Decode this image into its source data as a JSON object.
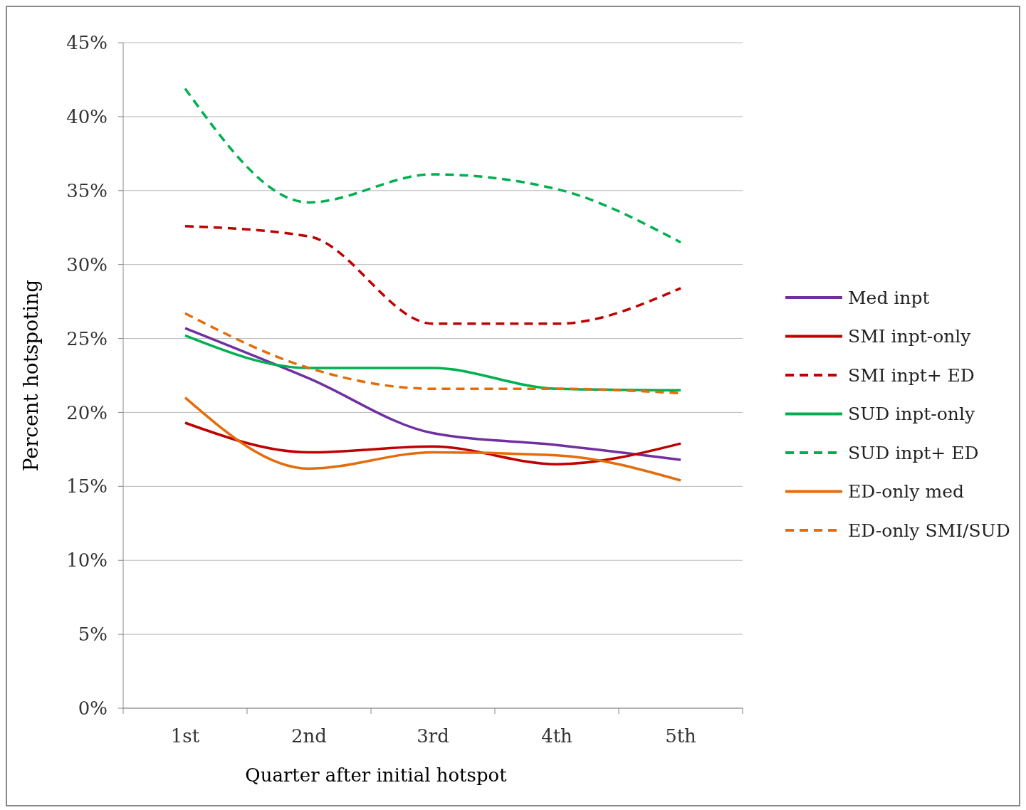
{
  "chart_data": {
    "type": "line",
    "xlabel": "Quarter after initial hotspot",
    "ylabel": "Percent  hotspoting",
    "categories": [
      "1st",
      "2nd",
      "3rd",
      "4th",
      "5th"
    ],
    "ylim": [
      0,
      45
    ],
    "yticks": [
      {
        "value": 0,
        "label": "0%"
      },
      {
        "value": 5,
        "label": "5%"
      },
      {
        "value": 10,
        "label": "10%"
      },
      {
        "value": 15,
        "label": "15%"
      },
      {
        "value": 20,
        "label": "20%"
      },
      {
        "value": 25,
        "label": "25%"
      },
      {
        "value": 30,
        "label": "30%"
      },
      {
        "value": 35,
        "label": "35%"
      },
      {
        "value": 40,
        "label": "40%"
      },
      {
        "value": 45,
        "label": "45%"
      }
    ],
    "grid": "y",
    "legend": "right",
    "marker": "none",
    "series": [
      {
        "name": "Med inpt",
        "color": "#7030a0",
        "line_style": "solid",
        "values": [
          25.7,
          22.3,
          18.6,
          17.8,
          16.8
        ]
      },
      {
        "name": "SMI inpt-only",
        "color": "#c00000",
        "line_style": "solid",
        "values": [
          19.3,
          17.3,
          17.7,
          16.5,
          17.9
        ]
      },
      {
        "name": "SMI inpt+ ED",
        "color": "#c00000",
        "line_style": "dashed",
        "values": [
          32.6,
          31.9,
          26.0,
          26.0,
          28.4
        ]
      },
      {
        "name": "SUD inpt-only",
        "color": "#00b050",
        "line_style": "solid",
        "values": [
          25.2,
          23.0,
          23.0,
          21.6,
          21.5
        ]
      },
      {
        "name": "SUD inpt+ ED",
        "color": "#00b050",
        "line_style": "dashed",
        "values": [
          41.9,
          34.2,
          36.1,
          35.1,
          31.5
        ]
      },
      {
        "name": "ED-only med",
        "color": "#e46c0a",
        "line_style": "solid",
        "values": [
          21.0,
          16.2,
          17.3,
          17.1,
          15.4
        ]
      },
      {
        "name": "ED-only SMI/SUD",
        "color": "#e46c0a",
        "line_style": "dashed",
        "values": [
          26.7,
          23.0,
          21.6,
          21.6,
          21.3
        ]
      }
    ]
  }
}
